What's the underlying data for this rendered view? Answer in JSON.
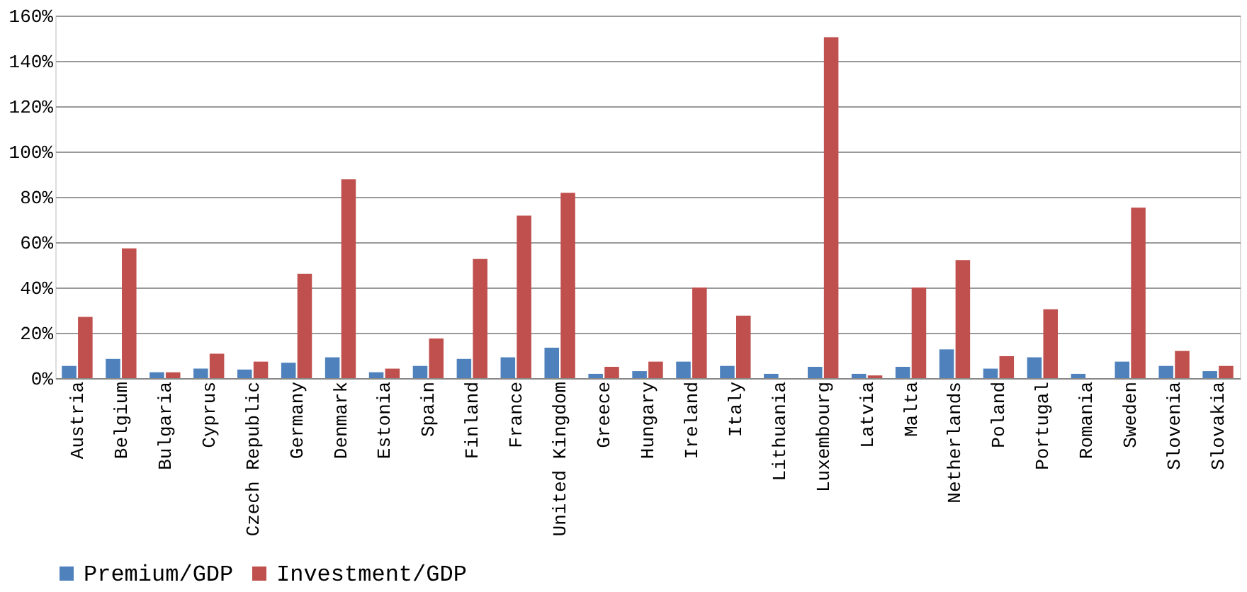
{
  "chart_data": {
    "type": "bar",
    "categories": [
      "Austria",
      "Belgium",
      "Bulgaria",
      "Cyprus",
      "Czech Republic",
      "Germany",
      "Denmark",
      "Estonia",
      "Spain",
      "Finland",
      "France",
      "United Kingdom",
      "Greece",
      "Hungary",
      "Ireland",
      "Italy",
      "Lithuania",
      "Luxembourg",
      "Latvia",
      "Malta",
      "Netherlands",
      "Poland",
      "Portugal",
      "Romania",
      "Sweden",
      "Slovenia",
      "Slovakia"
    ],
    "series": [
      {
        "name": "Premium/GDP",
        "color": "#4f81bd",
        "values": [
          5.4,
          8.5,
          2.6,
          4.2,
          3.8,
          6.8,
          9.2,
          2.6,
          5.4,
          8.5,
          9.2,
          13.4,
          1.9,
          3.1,
          7.3,
          5.4,
          1.9,
          5,
          1.9,
          5,
          12.7,
          4.2,
          9.2,
          1.9,
          7.3,
          5.4,
          3.1
        ]
      },
      {
        "name": "Investment/GDP",
        "color": "#c0504d",
        "values": [
          27,
          57.3,
          2.6,
          10.8,
          7.3,
          46,
          87.7,
          4.2,
          17.5,
          52.6,
          71.7,
          81.8,
          5,
          7.3,
          40,
          27.6,
          null,
          150.5,
          1.2,
          40,
          52.1,
          9.7,
          30.4,
          null,
          75.2,
          12,
          5.4
        ]
      }
    ],
    "ylim": [
      0,
      160
    ],
    "yticks": [
      {
        "value": 0,
        "label": "0%"
      },
      {
        "value": 20,
        "label": "20%"
      },
      {
        "value": 40,
        "label": "40%"
      },
      {
        "value": 60,
        "label": "60%"
      },
      {
        "value": 80,
        "label": "80%"
      },
      {
        "value": 100,
        "label": "100%"
      },
      {
        "value": 120,
        "label": "120%"
      },
      {
        "value": 140,
        "label": "140%"
      },
      {
        "value": 160,
        "label": "160%"
      }
    ],
    "grid": "y",
    "legend": "bottom"
  }
}
